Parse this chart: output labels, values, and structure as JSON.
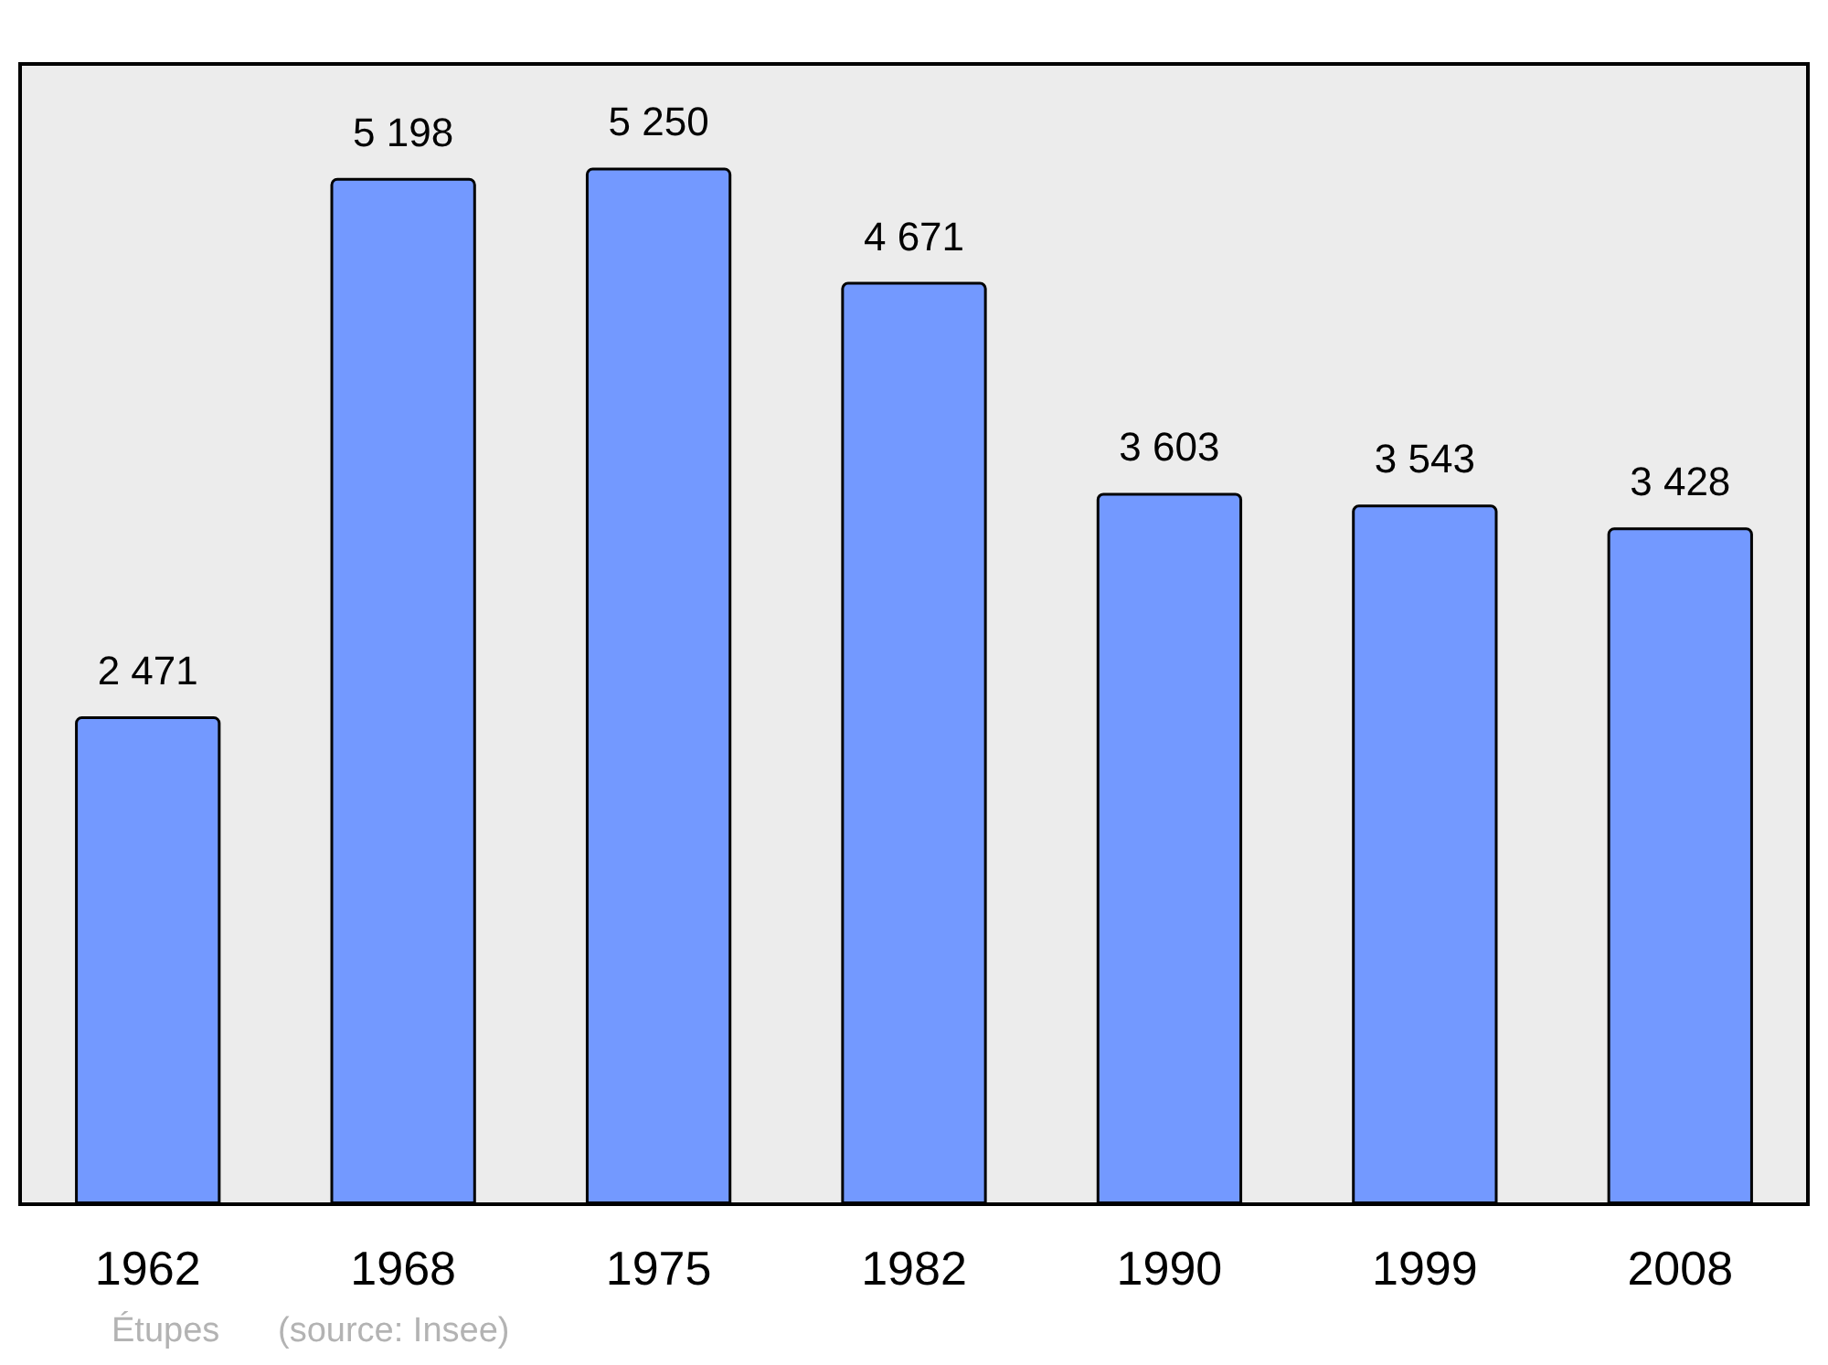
{
  "chart_data": {
    "type": "bar",
    "categories": [
      "1962",
      "1968",
      "1975",
      "1982",
      "1990",
      "1999",
      "2008"
    ],
    "values": [
      2471,
      5198,
      5250,
      4671,
      3603,
      3543,
      3428
    ],
    "value_labels": [
      "2 471",
      "5 198",
      "5 250",
      "4 671",
      "3 603",
      "3 543",
      "3 428"
    ],
    "color": "#7399ff",
    "annotations": [
      "Étupes",
      "(source: Insee)"
    ]
  }
}
